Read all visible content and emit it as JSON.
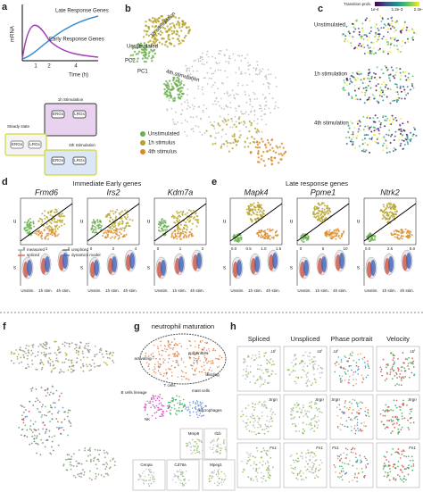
{
  "a": {
    "letter": "a",
    "y_label": "mRNA",
    "x_label": "Time (h)",
    "x_ticks": [
      "1",
      "2",
      "4"
    ],
    "late": "Late Response Genes",
    "early": "Early Response Genes",
    "stim1": "1h Stimulation",
    "steady": "Steady state",
    "stim4": "4th Stimulation",
    "erg": "ERGs",
    "lrg": "LRGs"
  },
  "b": {
    "letter": "b",
    "labels": [
      "1h stimulation",
      "Unstimulated",
      "4th stimulation"
    ],
    "pc2": "PC2",
    "pc1": "PC1",
    "legend": [
      "Unstimulated",
      "1h stimulus",
      "4th stimulus"
    ]
  },
  "c": {
    "letter": "c",
    "colorbar_title": "Transition prob.",
    "colorbar_ticks": [
      "1e-4",
      "1.2e-3",
      "2.3e-3"
    ],
    "labels": [
      "Unstimulated",
      "1h stimulation",
      "4th stimulation"
    ]
  },
  "d": {
    "letter": "d",
    "title": "Immediate Early genes",
    "u": "u",
    "s": "s",
    "legend": [
      "measured",
      "unspliced",
      "spliced",
      "dynamics model"
    ],
    "conditions": [
      "Unstim.",
      "1h stim.",
      "4h stim."
    ],
    "genes": [
      {
        "name": "Frmd6",
        "s_ticks": [
          "0",
          "1",
          "2"
        ]
      },
      {
        "name": "Irs2",
        "s_ticks": [
          "0",
          "2",
          "4"
        ]
      },
      {
        "name": "Kdm7a",
        "s_ticks": [
          "0",
          "1",
          "2"
        ]
      }
    ]
  },
  "e": {
    "letter": "e",
    "title": "Late response genes",
    "u": "u",
    "s": "s",
    "conditions": [
      "Unstim.",
      "1h stim.",
      "4h stim."
    ],
    "genes": [
      {
        "name": "Mapk4",
        "s_ticks": [
          "0.0",
          "0.5",
          "1.0",
          "1.5"
        ]
      },
      {
        "name": "Ppme1",
        "s_ticks": [
          "0",
          "5",
          "10"
        ]
      },
      {
        "name": "Ntrk2",
        "s_ticks": [
          "0.0",
          "2.5",
          "5.0"
        ]
      }
    ]
  },
  "f": {
    "letter": "f"
  },
  "g": {
    "letter": "g",
    "labels": [
      "neutrophil maturation",
      "activating",
      "progenitors",
      "dividing",
      "B cells lineage",
      "T cells",
      "mast cells",
      "NK",
      "macrophages"
    ],
    "genes": [
      "Mmp9",
      "Il1b",
      "Cenpa",
      "Cd79a",
      "Mpeg1"
    ]
  },
  "h": {
    "letter": "h",
    "columns": [
      "Spliced",
      "Unspliced",
      "Phase portrait",
      "Velocity"
    ],
    "genes": [
      "Ltf",
      "Srgn",
      "Fn1"
    ]
  }
}
